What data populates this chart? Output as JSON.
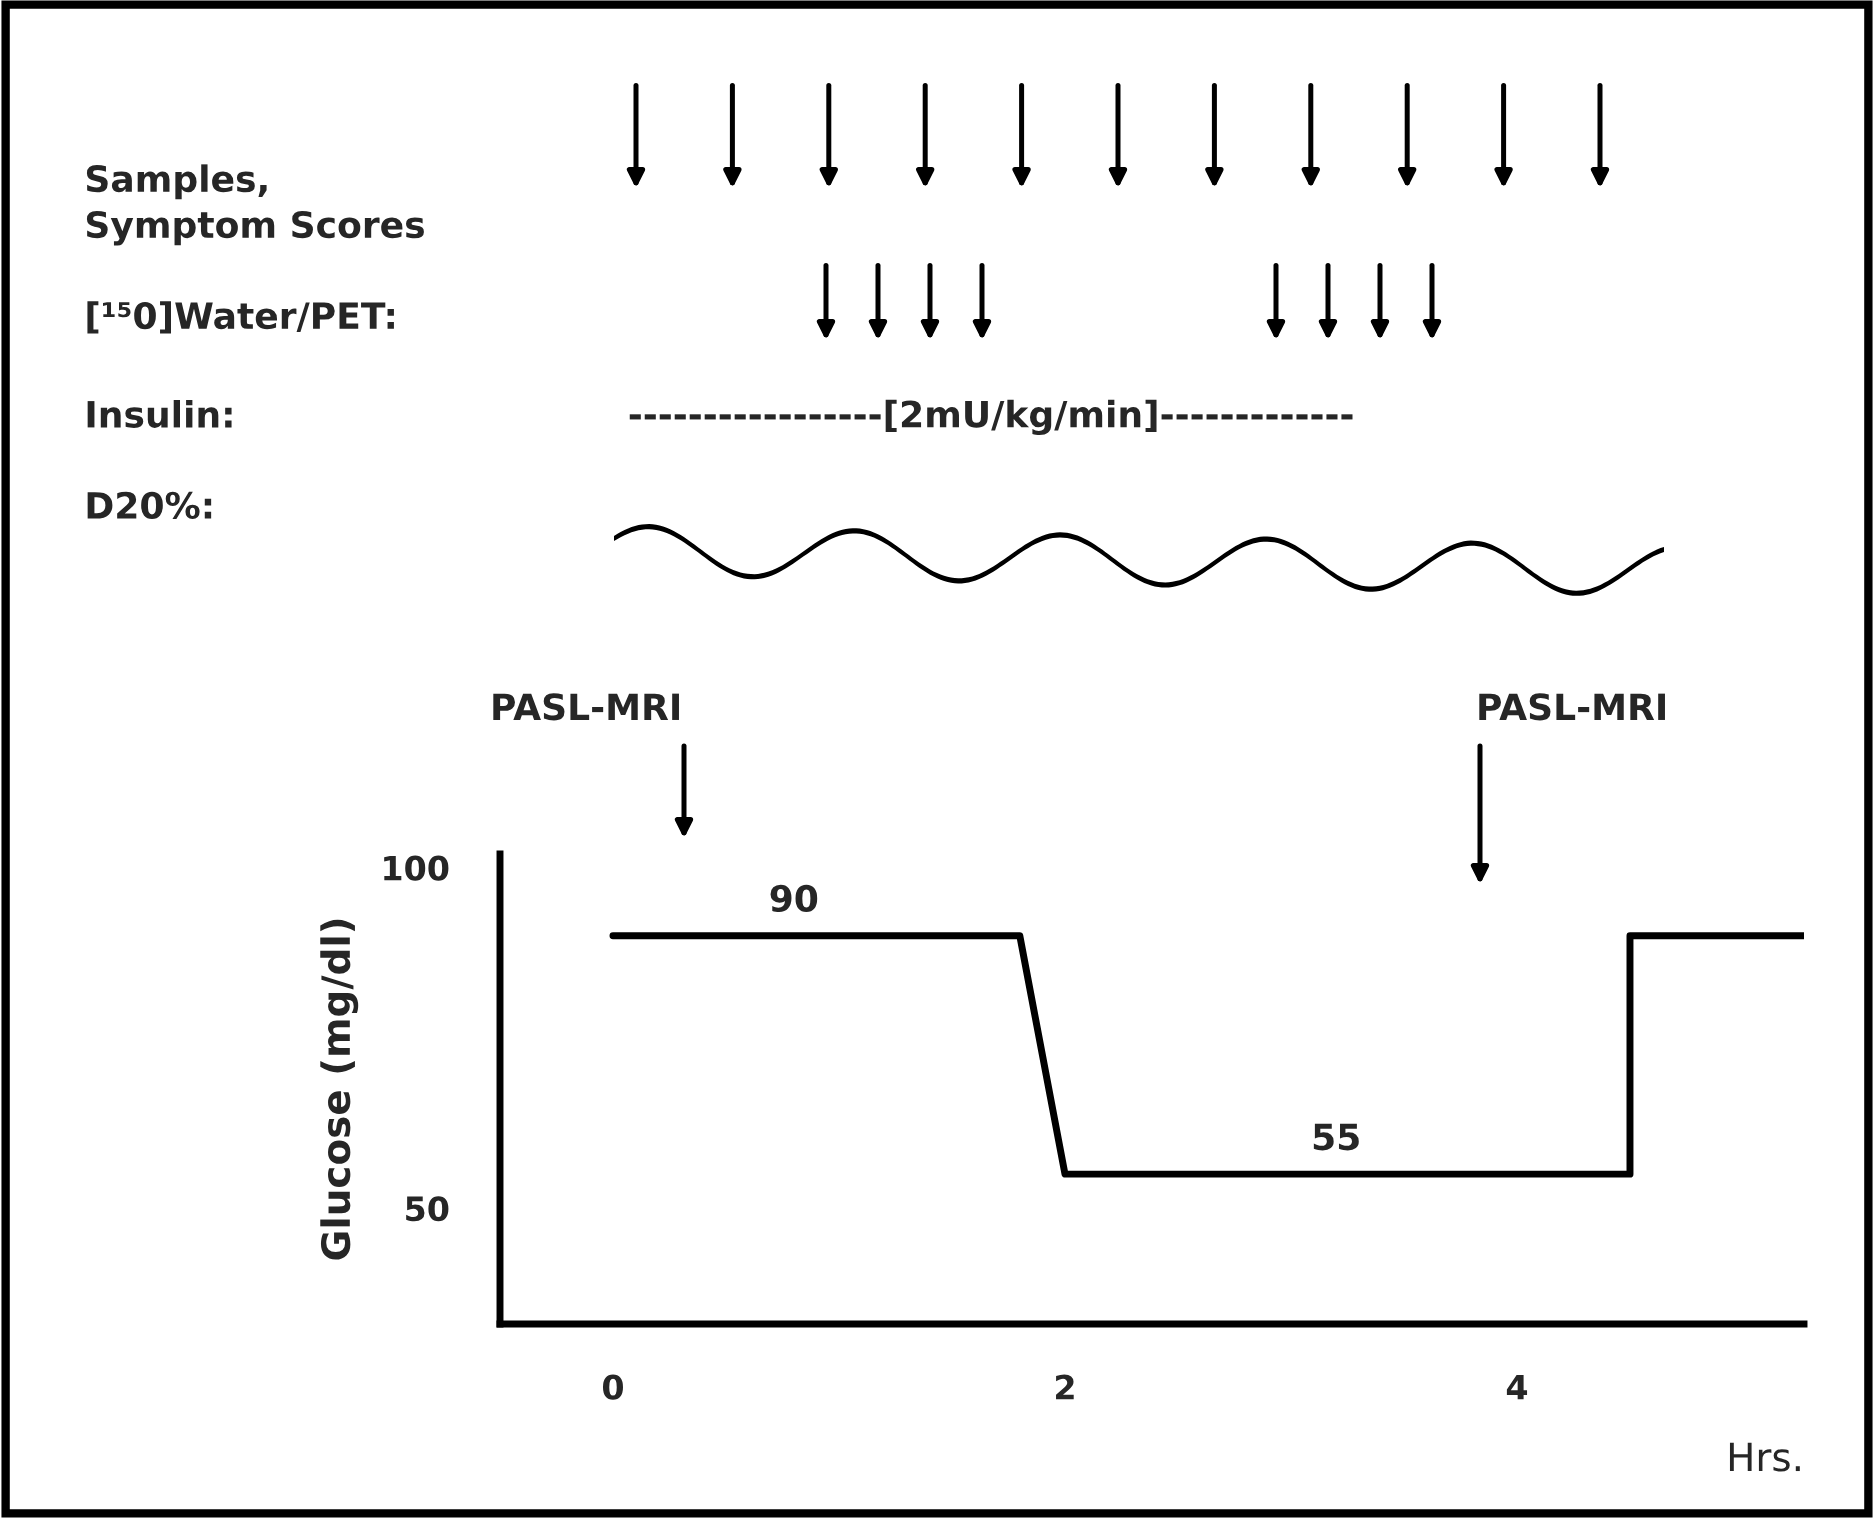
{
  "chart_data": {
    "type": "line",
    "ylabel": "Glucose (mg/dl)",
    "xlabel": "Hrs.",
    "x": [
      0,
      1.8,
      2.0,
      4.5,
      4.5,
      5.27
    ],
    "series": [
      {
        "color": "#000000",
        "values": [
          90,
          90,
          55,
          55,
          90,
          90
        ]
      }
    ],
    "xlim": [
      -0.5,
      5.27
    ],
    "ylim": [
      33,
      102
    ],
    "xticks": [
      0,
      2,
      4
    ],
    "yticks": [
      50,
      100
    ],
    "grid": false,
    "legend": false,
    "marker": "none",
    "line_style": "solid",
    "annotations": [
      "Samples,\nSymptom Scores",
      "[¹⁵0]Water/PET:",
      "Insulin:",
      "-----------------[2mU/kg/min]-------------",
      "D20%:",
      {
        "text": "90",
        "x": 0.8,
        "y": 90
      },
      {
        "text": "55",
        "x": 3.2,
        "y": 55
      },
      "PASL-MRI",
      "PASL-MRI"
    ]
  }
}
